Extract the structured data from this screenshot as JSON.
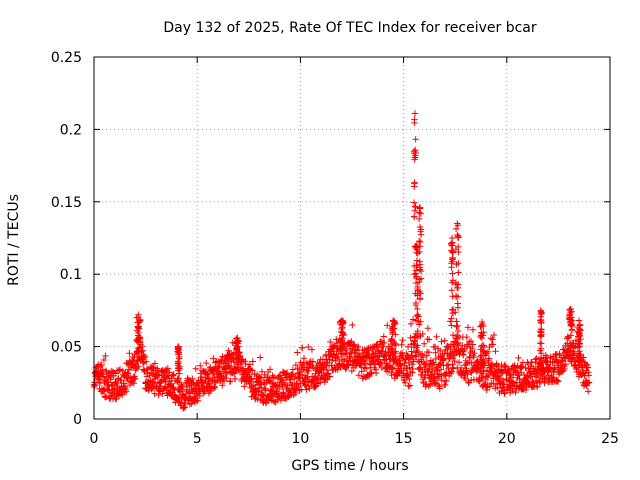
{
  "chart_data": {
    "type": "scatter",
    "title": "Day 132 of 2025, Rate Of TEC Index for receiver bcar",
    "xlabel": "GPS time / hours",
    "ylabel": "ROTI / TECUs",
    "xlim": [
      0,
      25
    ],
    "ylim": [
      0,
      0.25
    ],
    "xticks": [
      0,
      5,
      10,
      15,
      20,
      25
    ],
    "yticks": [
      0,
      0.05,
      0.1,
      0.15,
      0.2,
      0.25
    ],
    "xtick_labels": [
      "0",
      "5",
      "10",
      "15",
      "20",
      "25"
    ],
    "ytick_labels": [
      "0",
      "0.05",
      "0.1",
      "0.15",
      "0.2",
      "0.25"
    ],
    "grid": true,
    "marker": "+",
    "marker_color": "#ff0000",
    "profile": {
      "x": [
        0,
        0.3,
        0.5,
        1,
        1.5,
        2,
        2.2,
        2.5,
        3,
        3.5,
        4,
        4.3,
        5,
        5.5,
        6,
        6.5,
        7,
        7.5,
        8,
        8.5,
        9,
        9.5,
        10,
        10.5,
        11,
        11.5,
        12,
        12.5,
        13,
        13.5,
        14,
        14.5,
        15,
        15.3,
        15.6,
        15.8,
        16,
        16.5,
        17,
        17.5,
        17.8,
        18,
        18.5,
        19,
        19.5,
        20,
        20.5,
        21,
        21.5,
        22,
        22.5,
        23,
        23.3,
        23.6,
        24
      ],
      "y": [
        0.028,
        0.03,
        0.025,
        0.022,
        0.028,
        0.035,
        0.05,
        0.03,
        0.025,
        0.026,
        0.02,
        0.017,
        0.022,
        0.026,
        0.032,
        0.035,
        0.038,
        0.026,
        0.022,
        0.02,
        0.022,
        0.024,
        0.03,
        0.03,
        0.032,
        0.04,
        0.045,
        0.043,
        0.038,
        0.04,
        0.045,
        0.038,
        0.035,
        0.032,
        0.05,
        0.04,
        0.032,
        0.03,
        0.032,
        0.045,
        0.04,
        0.036,
        0.032,
        0.03,
        0.028,
        0.027,
        0.028,
        0.03,
        0.032,
        0.035,
        0.035,
        0.05,
        0.045,
        0.035,
        0.028
      ]
    },
    "spikes": [
      {
        "x": 2.15,
        "peak": 0.072,
        "width": 0.18
      },
      {
        "x": 4.1,
        "peak": 0.05,
        "width": 0.1
      },
      {
        "x": 6.95,
        "peak": 0.056,
        "width": 0.12
      },
      {
        "x": 12,
        "peak": 0.068,
        "width": 0.2
      },
      {
        "x": 14.5,
        "peak": 0.068,
        "width": 0.25
      },
      {
        "x": 15.55,
        "peak": 0.211,
        "width": 0.1
      },
      {
        "x": 15.8,
        "peak": 0.146,
        "width": 0.1
      },
      {
        "x": 15.65,
        "peak": 0.12,
        "width": 0.12
      },
      {
        "x": 17.6,
        "peak": 0.135,
        "width": 0.14
      },
      {
        "x": 17.35,
        "peak": 0.125,
        "width": 0.1
      },
      {
        "x": 18.8,
        "peak": 0.067,
        "width": 0.2
      },
      {
        "x": 21.65,
        "peak": 0.075,
        "width": 0.08
      },
      {
        "x": 23.1,
        "peak": 0.076,
        "width": 0.15
      },
      {
        "x": 23.5,
        "peak": 0.068,
        "width": 0.15
      }
    ]
  }
}
